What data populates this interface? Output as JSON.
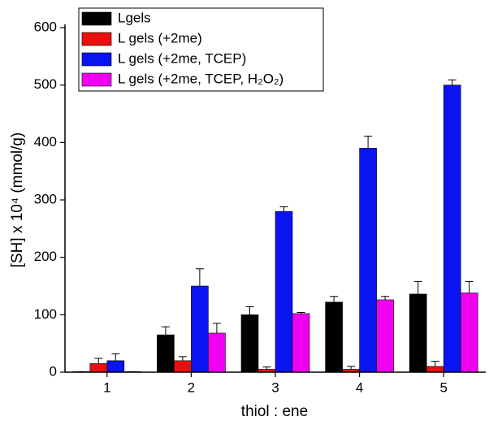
{
  "chart_data": {
    "type": "bar",
    "categories": [
      "1",
      "2",
      "3",
      "4",
      "5"
    ],
    "series": [
      {
        "name": "Lgels",
        "color": "#000000",
        "values": [
          1,
          65,
          100,
          122,
          136
        ],
        "errors": [
          0,
          14,
          14,
          10,
          22
        ]
      },
      {
        "name": "L gels (+2me)",
        "color": "#e8100c",
        "values": [
          15,
          20,
          5,
          5,
          10
        ],
        "errors": [
          9,
          7,
          4,
          5,
          9
        ]
      },
      {
        "name": "L gels (+2me, TCEP)",
        "color": "#0a14f0",
        "values": [
          20,
          150,
          280,
          390,
          500
        ],
        "errors": [
          12,
          30,
          8,
          21,
          9
        ]
      },
      {
        "name": "L gels (+2me, TCEP, H₂O₂)",
        "color": "#f000f0",
        "values": [
          1,
          68,
          102,
          126,
          138
        ],
        "errors": [
          0,
          17,
          2,
          6,
          20
        ]
      }
    ],
    "xlabel": "thiol : ene",
    "ylabel": "[SH] x 10⁴ (mmol/g)",
    "ylim": [
      0,
      600
    ],
    "yticks": [
      0,
      100,
      200,
      300,
      400,
      500,
      600
    ],
    "legend": "upper-left"
  }
}
